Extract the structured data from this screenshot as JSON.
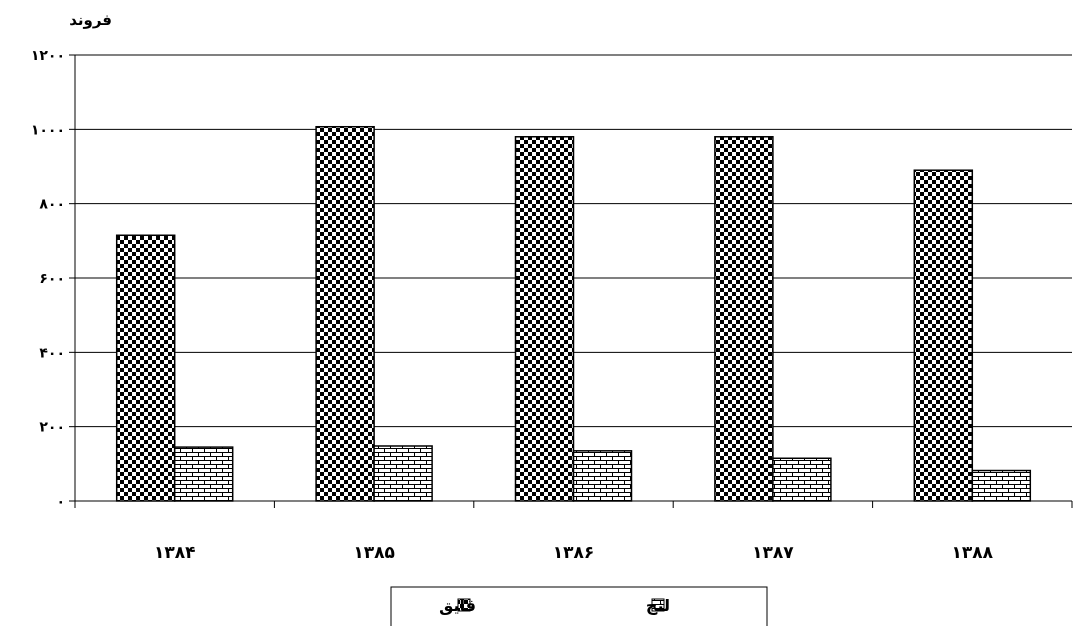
{
  "chart_data": {
    "type": "bar",
    "ylabel": "فروند",
    "ylim": [
      0,
      1200
    ],
    "yticks": [
      0,
      200,
      400,
      600,
      800,
      1000,
      1200
    ],
    "ytick_labels": [
      "۰",
      "۲۰۰",
      "۴۰۰",
      "۶۰۰",
      "۸۰۰",
      "۱۰۰۰",
      "۱۲۰۰"
    ],
    "categories": [
      "۱۳۸۴",
      "۱۳۸۵",
      "۱۳۸۶",
      "۱۳۸۷",
      "۱۳۸۸"
    ],
    "series": [
      {
        "name": "قایق",
        "values": [
          715,
          1007,
          980,
          980,
          890
        ],
        "pattern": "checker"
      },
      {
        "name": "لنج",
        "values": [
          145,
          148,
          135,
          115,
          82
        ],
        "pattern": "brick"
      }
    ],
    "grid": true,
    "legend_position": "bottom"
  }
}
